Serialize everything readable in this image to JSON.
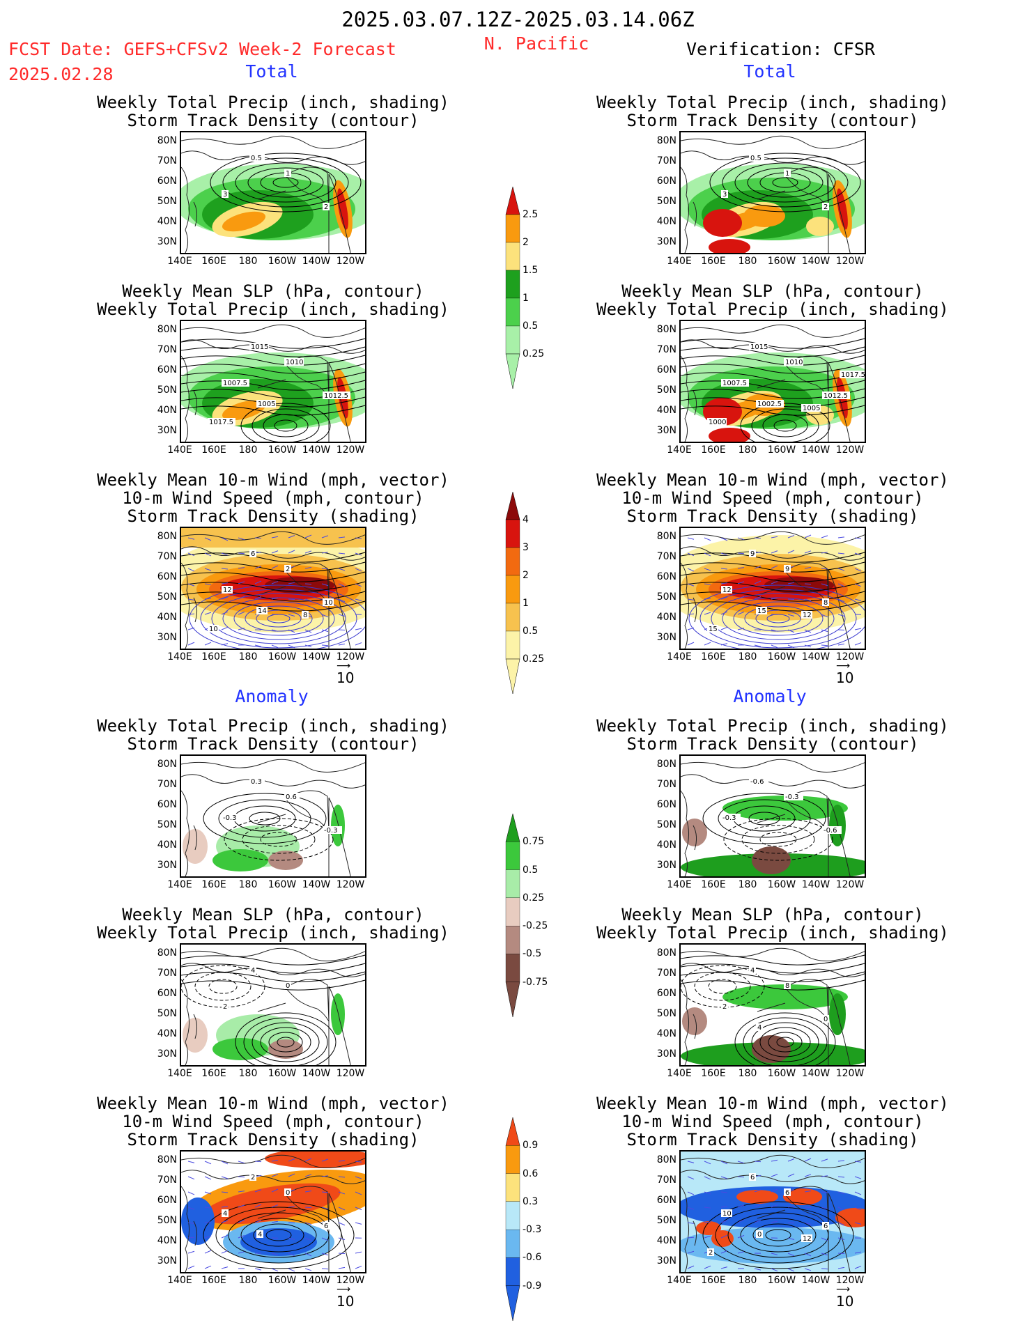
{
  "header": {
    "date_range": "2025.03.07.12Z-2025.03.14.06Z",
    "fcst_label": "FCST Date: GEFS+CFSv2 Week-2 Forecast",
    "fcst_date": "2025.02.28",
    "region": "N. Pacific",
    "verification": "Verification: CFSR"
  },
  "sections": {
    "total": "Total",
    "anomaly": "Anomaly"
  },
  "panel_titles": {
    "precip_track": [
      "Weekly Total Precip (inch, shading)",
      "Storm Track Density (contour)"
    ],
    "slp_precip": [
      "Weekly Mean SLP (hPa, contour)",
      "Weekly Total Precip (inch, shading)"
    ],
    "wind_track": [
      "Weekly Mean 10-m Wind (mph, vector)",
      "10-m Wind Speed (mph, contour)",
      "Storm Track Density (shading)"
    ]
  },
  "axes": {
    "lat_ticks": [
      "80N",
      "70N",
      "60N",
      "50N",
      "40N",
      "30N"
    ],
    "lon_ticks": [
      "140E",
      "160E",
      "180",
      "160W",
      "140W",
      "120W"
    ]
  },
  "vector_ref": "10",
  "colorbars": {
    "precip_total": {
      "labels": [
        "2.5",
        "2",
        "1.5",
        "1",
        "0.5",
        "0.25"
      ],
      "colors": [
        "#d8140e",
        "#f99a0f",
        "#fce27c",
        "#1ea01e",
        "#4cd04c",
        "#a8f0a8"
      ]
    },
    "track_total": {
      "labels": [
        "4",
        "3",
        "2",
        "1",
        "0.5",
        "0.25"
      ],
      "colors": [
        "#8c0a0a",
        "#d8140e",
        "#f26a10",
        "#f99a0f",
        "#f7c24e",
        "#fcf3a8"
      ]
    },
    "precip_anom": {
      "labels": [
        "0.75",
        "0.5",
        "0.25",
        "-0.25",
        "-0.5",
        "-0.75"
      ],
      "colors": [
        "#1e9e1e",
        "#3cc83c",
        "#a8eca8",
        "#e8ccc0",
        "#b48a80",
        "#7a4a40"
      ]
    },
    "track_anom": {
      "labels": [
        "0.9",
        "0.6",
        "0.3",
        "-0.3",
        "-0.6",
        "-0.9"
      ],
      "colors": [
        "#f04a18",
        "#f99a0f",
        "#fce27c",
        "#b8e8f8",
        "#6ab8f0",
        "#2060e0"
      ]
    }
  },
  "contour_labels": {
    "f_total_precip": [
      "0.5",
      "1",
      "3",
      "2"
    ],
    "v_total_precip": [
      "0.5",
      "1",
      "3",
      "2"
    ],
    "f_total_slp": [
      "1015",
      "1010",
      "1007.5",
      "1012.5",
      "1005",
      "1017.5"
    ],
    "v_total_slp": [
      "1015",
      "1010",
      "1007.5",
      "1012.5",
      "1002.5",
      "1000",
      "1005",
      "1017.5"
    ],
    "f_total_wind": [
      "6",
      "2",
      "12",
      "10",
      "14",
      "10",
      "8"
    ],
    "v_total_wind": [
      "9",
      "9",
      "12",
      "8",
      "15",
      "15",
      "12"
    ],
    "f_anom_precip": [
      "0.3",
      "0.6",
      "-0.3",
      "-0.3"
    ],
    "v_anom_precip": [
      "-0.6",
      "-0.3",
      "-0.3",
      "-0.6"
    ],
    "f_anom_slp": [
      "4",
      "0",
      "2"
    ],
    "v_anom_slp": [
      "4",
      "8",
      "2",
      "0",
      "4"
    ],
    "f_anom_wind": [
      "2",
      "0",
      "4",
      "6",
      "4"
    ],
    "v_anom_wind": [
      "6",
      "6",
      "10",
      "6",
      "0",
      "2",
      "12"
    ]
  }
}
